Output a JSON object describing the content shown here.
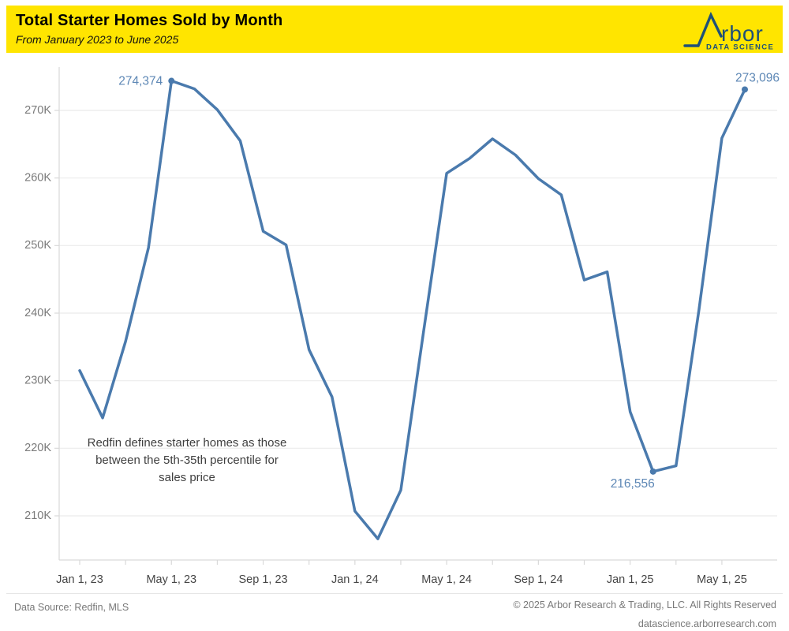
{
  "header": {
    "title": "Total Starter Homes Sold by Month",
    "subtitle": "From January 2023 to June 2025",
    "banner_color": "#FFE500",
    "logo": {
      "brand_text": "rbor",
      "tagline": "DATA SCIENCE",
      "color": "#1F5078"
    }
  },
  "chart_data": {
    "type": "line",
    "title": "Total Starter Homes Sold by Month",
    "x": [
      "Jan 2023",
      "Feb 2023",
      "Mar 2023",
      "Apr 2023",
      "May 2023",
      "Jun 2023",
      "Jul 2023",
      "Aug 2023",
      "Sep 2023",
      "Oct 2023",
      "Nov 2023",
      "Dec 2023",
      "Jan 2024",
      "Feb 2024",
      "Mar 2024",
      "Apr 2024",
      "May 2024",
      "Jun 2024",
      "Jul 2024",
      "Aug 2024",
      "Sep 2024",
      "Oct 2024",
      "Nov 2024",
      "Dec 2024",
      "Jan 2025",
      "Feb 2025",
      "Mar 2025",
      "Apr 2025",
      "May 2025",
      "Jun 2025"
    ],
    "values": [
      231500,
      224500,
      235800,
      249700,
      274374,
      273200,
      270100,
      265500,
      252100,
      250100,
      234600,
      227600,
      210700,
      206600,
      213800,
      237400,
      260700,
      262900,
      265800,
      263400,
      259900,
      257500,
      244900,
      246100,
      225400,
      216556,
      217400,
      240500,
      265900,
      273096
    ],
    "ylim": [
      203000,
      278500
    ],
    "y_ticks": [
      {
        "v": 210000,
        "label": "210K"
      },
      {
        "v": 220000,
        "label": "220K"
      },
      {
        "v": 230000,
        "label": "230K"
      },
      {
        "v": 240000,
        "label": "240K"
      },
      {
        "v": 250000,
        "label": "250K"
      },
      {
        "v": 260000,
        "label": "260K"
      },
      {
        "v": 270000,
        "label": "270K"
      }
    ],
    "x_tick_labels": [
      {
        "month_index": 0,
        "label": "Jan 1, 23"
      },
      {
        "month_index": 4,
        "label": "May 1, 23"
      },
      {
        "month_index": 8,
        "label": "Sep 1, 23"
      },
      {
        "month_index": 12,
        "label": "Jan 1, 24"
      },
      {
        "month_index": 16,
        "label": "May 1, 24"
      },
      {
        "month_index": 20,
        "label": "Sep 1, 24"
      },
      {
        "month_index": 24,
        "label": "Jan 1, 25"
      },
      {
        "month_index": 28,
        "label": "May 1, 25"
      }
    ],
    "grid": "horizontal",
    "legend": "none",
    "line_color": "#4A7AAD",
    "annotation_color": "#5D87B5",
    "annotations": [
      {
        "month_index": 4,
        "label": "274,374",
        "value": 274374
      },
      {
        "month_index": 25,
        "label": "216,556",
        "value": 216556
      },
      {
        "month_index": 29,
        "label": "273,096",
        "value": 273096
      }
    ],
    "note_lines": [
      "Redfin defines starter homes as those",
      "between the 5th-35th percentile for",
      "sales price"
    ]
  },
  "footer": {
    "source": "Data Source: Redfin, MLS",
    "copyright": "© 2025 Arbor Research & Trading, LLC. All Rights Reserved",
    "website": "datascience.arborresearch.com"
  }
}
